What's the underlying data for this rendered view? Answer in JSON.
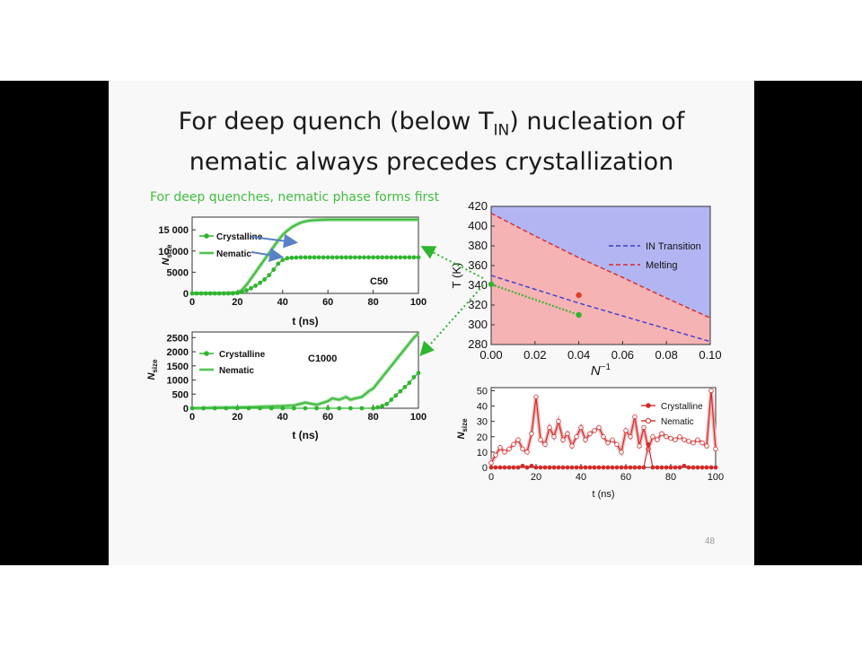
{
  "slide": {
    "title_line1_a": "For deep quench (below T",
    "title_sub": "IN",
    "title_line1_b": ") nucleation of",
    "title_line2": "nematic always precedes crystallization",
    "subtitle": "For deep quenches, nematic phase forms first",
    "page_number": "48"
  },
  "colors": {
    "green": "#2fb52f",
    "lightgreen": "#8fd98f",
    "red": "#d42a2a",
    "blue": "#3b3bd0",
    "pinkfill": "#f6b3b3",
    "bluefill": "#b3b5f3"
  },
  "chart_data": [
    {
      "id": "c50",
      "type": "line",
      "annotation": "C50",
      "xlabel": "t (ns)",
      "ylabel": "N_size",
      "xlim": [
        0,
        100
      ],
      "ylim": [
        0,
        18000
      ],
      "xticks": [
        0,
        20,
        40,
        60,
        80,
        100
      ],
      "yticks": [
        0,
        5000,
        10000,
        15000
      ],
      "ytick_labels": [
        "0",
        "5000",
        "10 000",
        "15 000"
      ],
      "legend_position": "top-left",
      "series": [
        {
          "name": "Crystalline",
          "x": [
            0,
            2,
            4,
            6,
            8,
            10,
            12,
            14,
            16,
            18,
            20,
            22,
            24,
            26,
            28,
            30,
            32,
            34,
            36,
            38,
            40,
            42,
            44,
            46,
            48,
            50,
            52,
            54,
            56,
            58,
            60,
            62,
            64,
            66,
            68,
            70,
            72,
            74,
            76,
            78,
            80,
            82,
            84,
            86,
            88,
            90,
            92,
            94,
            96,
            98,
            100
          ],
          "y": [
            0,
            0,
            0,
            0,
            0,
            0,
            0,
            0,
            0,
            0,
            100,
            300,
            700,
            1200,
            1800,
            2500,
            3300,
            4300,
            5600,
            7000,
            7900,
            8300,
            8400,
            8450,
            8500,
            8500,
            8500,
            8500,
            8500,
            8500,
            8500,
            8500,
            8500,
            8500,
            8500,
            8500,
            8500,
            8500,
            8500,
            8500,
            8500,
            8500,
            8500,
            8500,
            8500,
            8500,
            8500,
            8500,
            8500,
            8500,
            8500
          ]
        },
        {
          "name": "Nematic",
          "x": [
            0,
            5,
            10,
            15,
            20,
            22,
            24,
            26,
            28,
            30,
            32,
            34,
            36,
            38,
            40,
            42,
            44,
            46,
            48,
            50,
            52,
            55,
            60,
            65,
            70,
            75,
            80,
            85,
            90,
            95,
            100
          ],
          "y": [
            0,
            0,
            0,
            50,
            200,
            800,
            2000,
            3500,
            5000,
            6500,
            8000,
            9500,
            11000,
            12500,
            13800,
            14800,
            15600,
            16200,
            16700,
            17000,
            17200,
            17300,
            17400,
            17400,
            17400,
            17400,
            17400,
            17400,
            17400,
            17400,
            17400
          ]
        }
      ]
    },
    {
      "id": "c1000",
      "type": "line",
      "annotation": "C1000",
      "xlabel": "t (ns)",
      "ylabel": "N_size",
      "xlim": [
        0,
        100
      ],
      "ylim": [
        0,
        2700
      ],
      "xticks": [
        0,
        20,
        40,
        60,
        80,
        100
      ],
      "yticks": [
        0,
        500,
        1000,
        1500,
        2000,
        2500
      ],
      "ytick_labels": [
        "0",
        "500",
        "1000",
        "1500",
        "2000",
        "2500"
      ],
      "legend_position": "top-left",
      "series": [
        {
          "name": "Crystalline",
          "x": [
            0,
            5,
            10,
            15,
            20,
            25,
            30,
            35,
            40,
            45,
            50,
            55,
            60,
            65,
            70,
            75,
            80,
            82,
            84,
            86,
            88,
            90,
            92,
            94,
            96,
            98,
            100
          ],
          "y": [
            0,
            0,
            0,
            0,
            0,
            0,
            0,
            0,
            0,
            0,
            0,
            0,
            0,
            0,
            0,
            0,
            0,
            30,
            80,
            150,
            300,
            450,
            600,
            750,
            900,
            1100,
            1250
          ]
        },
        {
          "name": "Nematic",
          "x": [
            0,
            10,
            20,
            30,
            40,
            45,
            50,
            55,
            60,
            62,
            65,
            68,
            70,
            72,
            75,
            78,
            80,
            82,
            84,
            86,
            88,
            90,
            92,
            94,
            96,
            98,
            100
          ],
          "y": [
            0,
            20,
            30,
            50,
            80,
            100,
            200,
            120,
            250,
            350,
            300,
            400,
            300,
            350,
            400,
            600,
            700,
            900,
            1100,
            1300,
            1500,
            1700,
            1900,
            2100,
            2300,
            2500,
            2650
          ]
        }
      ]
    },
    {
      "id": "phase",
      "type": "area",
      "xlabel": "N^-1",
      "ylabel": "T (K)",
      "xlim": [
        0,
        0.1
      ],
      "ylim": [
        280,
        420
      ],
      "xticks": [
        0.0,
        0.02,
        0.04,
        0.06,
        0.08,
        0.1
      ],
      "xtick_labels": [
        "0.00",
        "0.02",
        "0.04",
        "0.06",
        "0.08",
        "0.10"
      ],
      "yticks": [
        280,
        300,
        320,
        340,
        360,
        380,
        400,
        420
      ],
      "legend_position": "right",
      "series": [
        {
          "name": "IN Transition",
          "x": [
            0,
            0.02,
            0.04,
            0.06,
            0.08,
            0.1
          ],
          "y": [
            350,
            336,
            322,
            309,
            296,
            283
          ]
        },
        {
          "name": "Melting",
          "x": [
            0,
            0.02,
            0.04,
            0.06,
            0.08,
            0.1
          ],
          "y": [
            413,
            390,
            368,
            348,
            327,
            307
          ]
        }
      ],
      "points": [
        {
          "x": 0.0,
          "y": 341,
          "color": "green"
        },
        {
          "x": 0.04,
          "y": 310,
          "color": "green"
        },
        {
          "x": 0.04,
          "y": 330,
          "color": "red"
        }
      ]
    },
    {
      "id": "bottom-right",
      "type": "line",
      "xlabel": "t (ns)",
      "ylabel": "N_size",
      "xlim": [
        0,
        100
      ],
      "ylim": [
        0,
        52
      ],
      "xticks": [
        0,
        20,
        40,
        60,
        80,
        100
      ],
      "yticks": [
        0,
        10,
        20,
        30,
        40,
        50
      ],
      "legend_position": "top-right",
      "series": [
        {
          "name": "Crystalline",
          "x": [
            0,
            2,
            4,
            6,
            8,
            10,
            12,
            14,
            16,
            18,
            20,
            22,
            24,
            26,
            28,
            30,
            32,
            34,
            36,
            38,
            40,
            42,
            44,
            46,
            48,
            50,
            52,
            54,
            56,
            58,
            60,
            62,
            64,
            66,
            68,
            70,
            72,
            74,
            76,
            78,
            80,
            82,
            84,
            86,
            88,
            90,
            92,
            94,
            96,
            98,
            100
          ],
          "y": [
            0,
            0,
            0,
            0,
            0,
            0,
            0,
            1,
            0,
            1,
            0,
            0,
            0,
            0,
            0,
            0,
            0,
            0,
            0,
            0,
            0,
            0,
            0,
            0,
            0,
            0,
            0,
            0,
            0,
            0,
            0,
            0,
            0,
            0,
            0,
            15,
            0,
            0,
            0,
            0,
            0,
            0,
            0,
            1,
            0,
            0,
            0,
            0,
            0,
            0,
            0
          ]
        },
        {
          "name": "Nematic",
          "x": [
            0,
            2,
            4,
            6,
            8,
            10,
            12,
            14,
            16,
            18,
            20,
            22,
            24,
            26,
            28,
            30,
            32,
            34,
            36,
            38,
            40,
            42,
            44,
            46,
            48,
            50,
            52,
            54,
            56,
            58,
            60,
            62,
            64,
            66,
            68,
            70,
            72,
            74,
            76,
            78,
            80,
            82,
            84,
            86,
            88,
            90,
            92,
            94,
            96,
            98,
            100
          ],
          "y": [
            3,
            8,
            13,
            10,
            12,
            15,
            18,
            12,
            10,
            22,
            46,
            18,
            15,
            26,
            20,
            30,
            18,
            22,
            14,
            20,
            26,
            18,
            22,
            24,
            26,
            20,
            16,
            18,
            15,
            10,
            24,
            20,
            33,
            14,
            26,
            12,
            20,
            18,
            22,
            20,
            19,
            18,
            20,
            18,
            17,
            16,
            18,
            16,
            14,
            50,
            12
          ]
        }
      ]
    }
  ]
}
